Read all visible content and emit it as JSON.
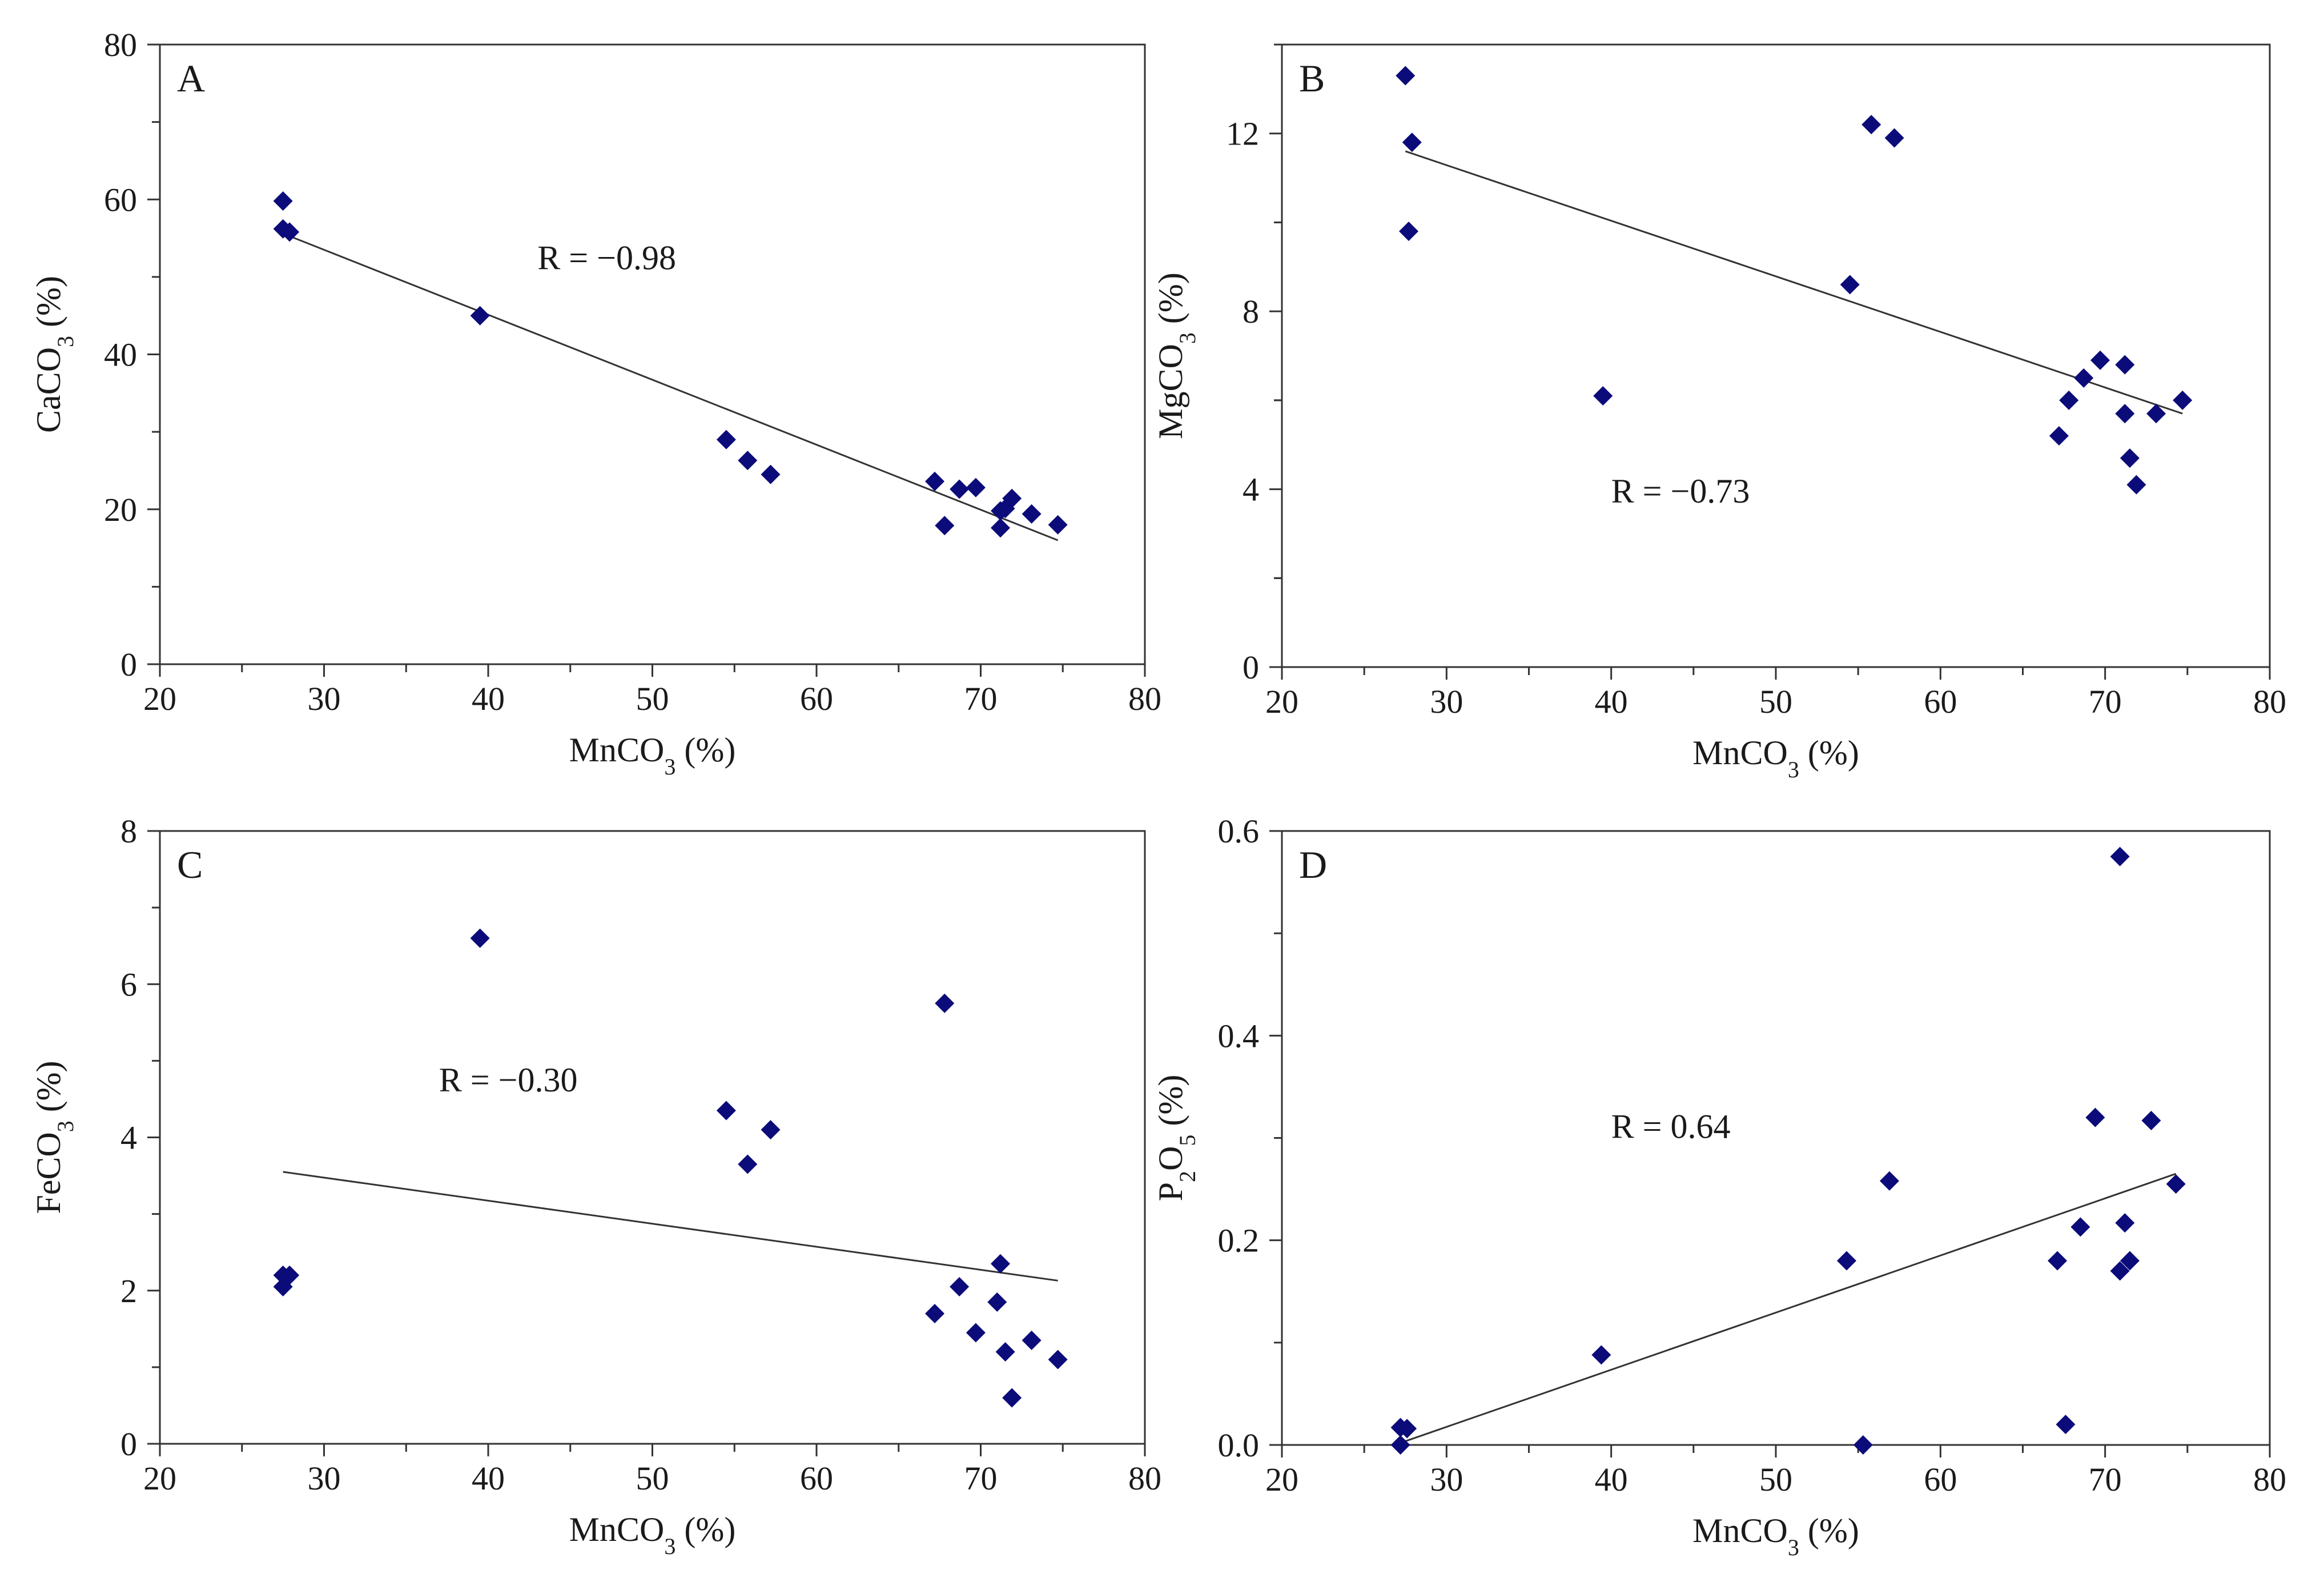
{
  "colors": {
    "marker": "#0b0b7a",
    "axis": "#333333",
    "line": "#333333",
    "background": "#ffffff"
  },
  "chart_data": [
    {
      "type": "scatter",
      "panel": "A",
      "xlabel": "MnCO",
      "xlabel_sub": "3",
      "xlabel_unit": " (%)",
      "ylabel": "CaCO",
      "ylabel_sub": "3",
      "ylabel_unit": " (%)",
      "xlim": [
        20,
        80
      ],
      "ylim": [
        0,
        80
      ],
      "xticks": [
        20,
        30,
        40,
        50,
        60,
        70,
        80
      ],
      "yticks": [
        0,
        20,
        40,
        60,
        80
      ],
      "ytick_labels": [
        "0",
        "20",
        "40",
        "60",
        "80"
      ],
      "annotation": "R = −0.98",
      "annotation_pos": [
        43,
        51
      ],
      "trendline": [
        [
          27.5,
          55.6
        ],
        [
          74.7,
          16.0
        ]
      ],
      "x": [
        27.5,
        27.5,
        27.9,
        39.5,
        54.5,
        55.8,
        57.2,
        67.2,
        67.8,
        68.7,
        69.7,
        71.2,
        71.2,
        71.5,
        71.9,
        73.1,
        74.7
      ],
      "y": [
        59.8,
        56.2,
        55.8,
        45.0,
        29.0,
        26.3,
        24.5,
        23.6,
        17.9,
        22.6,
        22.8,
        17.6,
        19.8,
        20.1,
        21.4,
        19.4,
        18.0
      ]
    },
    {
      "type": "scatter",
      "panel": "B",
      "xlabel": "MnCO",
      "xlabel_sub": "3",
      "xlabel_unit": " (%)",
      "ylabel": "MgCO",
      "ylabel_sub": "3",
      "ylabel_unit": " (%)",
      "xlim": [
        20,
        80
      ],
      "ylim": [
        0,
        14
      ],
      "xticks": [
        20,
        30,
        40,
        50,
        60,
        70,
        80
      ],
      "yticks": [
        0,
        4,
        8,
        12
      ],
      "ytick_labels": [
        "0",
        "4",
        "8",
        "12"
      ],
      "annotation": "R = −0.73",
      "annotation_pos": [
        40,
        3.7
      ],
      "trendline": [
        [
          27.5,
          11.6
        ],
        [
          74.7,
          5.7
        ]
      ],
      "x": [
        27.5,
        27.9,
        27.7,
        39.5,
        54.5,
        55.8,
        57.2,
        67.2,
        67.8,
        68.7,
        69.7,
        71.2,
        71.2,
        71.5,
        71.9,
        73.1,
        74.7
      ],
      "y": [
        13.3,
        11.8,
        9.8,
        6.1,
        8.6,
        12.2,
        11.9,
        5.2,
        6.0,
        6.5,
        6.9,
        6.8,
        5.7,
        4.7,
        4.1,
        5.7,
        6.0
      ]
    },
    {
      "type": "scatter",
      "panel": "C",
      "xlabel": "MnCO",
      "xlabel_sub": "3",
      "xlabel_unit": " (%)",
      "ylabel": "FeCO",
      "ylabel_sub": "3",
      "ylabel_unit": " (%)",
      "xlim": [
        20,
        80
      ],
      "ylim": [
        0,
        8
      ],
      "xticks": [
        20,
        30,
        40,
        50,
        60,
        70,
        80
      ],
      "yticks": [
        0,
        2,
        4,
        6,
        8
      ],
      "ytick_labels": [
        "0",
        "2",
        "4",
        "6",
        "8"
      ],
      "annotation": "R = −0.30",
      "annotation_pos": [
        37,
        4.6
      ],
      "trendline": [
        [
          27.5,
          3.55
        ],
        [
          74.7,
          2.13
        ]
      ],
      "x": [
        27.5,
        27.5,
        27.9,
        39.5,
        54.5,
        55.8,
        57.2,
        67.2,
        67.8,
        68.7,
        69.7,
        71.0,
        71.2,
        71.5,
        71.9,
        73.1,
        74.7
      ],
      "y": [
        2.2,
        2.05,
        2.2,
        6.6,
        4.35,
        3.65,
        4.1,
        1.7,
        5.75,
        2.05,
        1.45,
        1.85,
        2.35,
        1.2,
        0.6,
        1.35,
        1.1
      ]
    },
    {
      "type": "scatter",
      "panel": "D",
      "xlabel": "MnCO",
      "xlabel_sub": "3",
      "xlabel_unit": " (%)",
      "ylabel": "P",
      "ylabel_sub": "2",
      "ylabel_mid": "O",
      "ylabel_sub2": "5",
      "ylabel_unit": " (%)",
      "xlim": [
        20,
        80
      ],
      "ylim": [
        0,
        0.6
      ],
      "xticks": [
        20,
        30,
        40,
        50,
        60,
        70,
        80
      ],
      "yticks": [
        0,
        0.2,
        0.4,
        0.6
      ],
      "ytick_labels": [
        "0.0",
        "0.2",
        "0.4",
        "0.6"
      ],
      "annotation": "R = 0.64",
      "annotation_pos": [
        40,
        0.3
      ],
      "trendline": [
        [
          27.2,
          0.002
        ],
        [
          74.3,
          0.265
        ]
      ],
      "x": [
        27.2,
        27.2,
        27.6,
        39.4,
        54.3,
        55.3,
        56.9,
        67.1,
        67.6,
        68.5,
        69.4,
        70.9,
        70.9,
        71.2,
        71.5,
        72.8,
        74.3
      ],
      "y": [
        0.0,
        0.017,
        0.016,
        0.088,
        0.18,
        0.0,
        0.258,
        0.18,
        0.02,
        0.213,
        0.32,
        0.575,
        0.17,
        0.217,
        0.18,
        0.317,
        0.255
      ]
    }
  ]
}
